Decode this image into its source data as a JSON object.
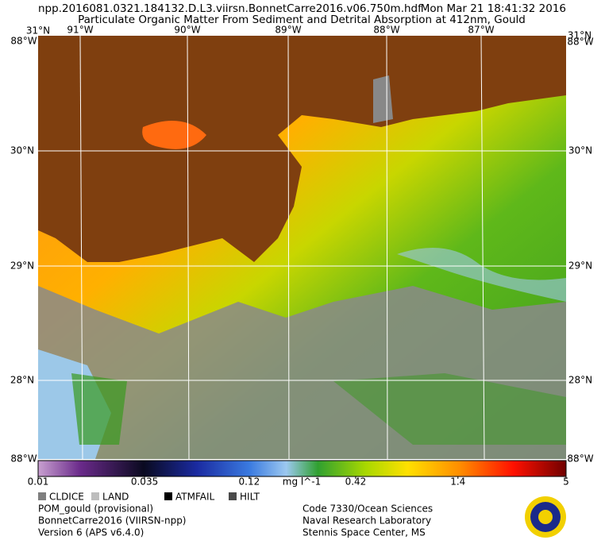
{
  "header": {
    "filename": "npp.2016081.0321.184132.D.L3.viirsn.BonnetCarre2016.v06.750m.hdf",
    "timestamp": "Mon Mar 21 18:41:32 2016",
    "title": "Particulate Organic Matter From Sediment and Detrital Absorption at 412nm, Gould"
  },
  "map": {
    "top_left": "31°N",
    "top_right": "31°N",
    "corner_left_top": "88°W",
    "corner_right_top": "88°W",
    "corner_left_bottom": "88°W",
    "corner_right_bottom": "88°W",
    "longitudes": [
      "91°W",
      "90°W",
      "89°W",
      "88°W",
      "87°W"
    ],
    "latitudes_left": [
      "30°N",
      "29°N",
      "28°N"
    ],
    "latitudes_right": [
      "30°N",
      "29°N",
      "28°N"
    ]
  },
  "colorbar": {
    "scale": "log",
    "range": [
      0.01,
      5
    ],
    "ticks": [
      0.01,
      0.035,
      0.12,
      0.42,
      1.4,
      5
    ],
    "units": "mg l^-1"
  },
  "flags": [
    {
      "label": "CLDICE",
      "color": "#7f7f7f"
    },
    {
      "label": "LAND",
      "color": "#bdbdbd"
    },
    {
      "label": "ATMFAIL",
      "color": "#000000"
    },
    {
      "label": "HILT",
      "color": "#4a4a4a"
    }
  ],
  "footer": {
    "left": [
      "POM_gould (provisional)",
      "BonnetCarre2016 (VIIRSN-npp)",
      "Version 6 (APS v6.4.0)"
    ],
    "right": [
      "Code 7330/Ocean Sciences",
      "Naval Research Laboratory",
      "Stennis Space Center, MS"
    ]
  }
}
